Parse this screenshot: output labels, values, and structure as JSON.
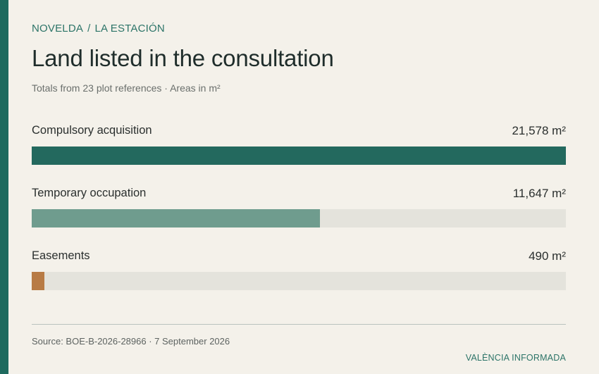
{
  "breadcrumb": {
    "town": "NOVELDA",
    "separator": "/",
    "place": "LA ESTACIÓN"
  },
  "title": "Land listed in the consultation",
  "subtitle": "Totals from 23 plot references · Areas in m²",
  "chart_data": {
    "type": "bar",
    "orientation": "horizontal",
    "title": "Land listed in the consultation",
    "subtitle": "Totals from 23 plot references · Areas in m²",
    "unit": "m²",
    "categories": [
      "Compulsory acquisition",
      "Temporary occupation",
      "Easements"
    ],
    "values": [
      21578,
      11647,
      490
    ],
    "value_labels": [
      "21,578 m²",
      "11,647 m²",
      "490 m²"
    ],
    "xlim": [
      0,
      21578
    ],
    "grid": false,
    "colors": [
      "#23695e",
      "#6f9c8e",
      "#b87b45"
    ],
    "track_color": "#e4e3dc"
  },
  "footer": {
    "source": "Source: BOE-B-2026-28966 · 7 September 2026",
    "brand": "VALÈNCIA INFORMADA"
  },
  "colors": {
    "accent": "#1e6a5e",
    "background": "#f4f1ea"
  }
}
